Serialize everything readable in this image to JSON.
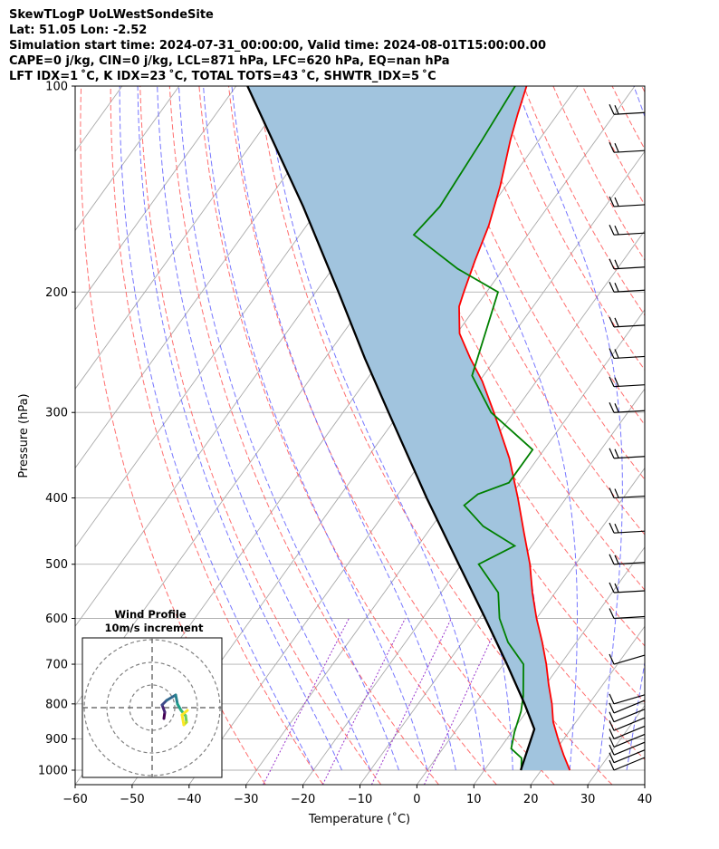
{
  "header": {
    "line1": "SkewTLogP UoLWestSondeSite",
    "line2": "Lat: 51.05   Lon: -2.52",
    "line3": "Simulation start time: 2024-07-31_00:00:00, Valid time: 2024-08-01T15:00:00.00",
    "line4": "CAPE=0 j/kg, CIN=0 j/kg, LCL=871 hPa, LFC=620 hPa, EQ=nan hPa",
    "line5": "LFT IDX=1 ˚C, K IDX=23 ˚C, TOTAL TOTS=43 ˚C, SHWTR_IDX=5 ˚C"
  },
  "chart_data": {
    "type": "line",
    "subtype": "skew-T log-P",
    "xlabel": "Temperature (˚C)",
    "ylabel": "Pressure (hPa)",
    "xlim": [
      -60,
      40
    ],
    "ylim": [
      1050,
      100
    ],
    "y_scale": "log",
    "grid": true,
    "x_ticks": [
      "−60",
      "−50",
      "−40",
      "−30",
      "−20",
      "−10",
      "0",
      "10",
      "20",
      "30",
      "40"
    ],
    "y_ticks": [
      "100",
      "200",
      "300",
      "400",
      "500",
      "600",
      "700",
      "800",
      "900",
      "1000"
    ],
    "series": [
      {
        "role": "temperature",
        "color": "#ff0000",
        "points": [
          [
            1000,
            25
          ],
          [
            950,
            22
          ],
          [
            900,
            19
          ],
          [
            850,
            16
          ],
          [
            800,
            13.5
          ],
          [
            750,
            10.5
          ],
          [
            700,
            7.5
          ],
          [
            650,
            4
          ],
          [
            600,
            0
          ],
          [
            550,
            -4
          ],
          [
            500,
            -8
          ],
          [
            450,
            -13
          ],
          [
            400,
            -18.5
          ],
          [
            350,
            -25
          ],
          [
            300,
            -33.5
          ],
          [
            270,
            -39.5
          ],
          [
            250,
            -44.5
          ],
          [
            230,
            -49.5
          ],
          [
            210,
            -53
          ],
          [
            200,
            -54
          ],
          [
            180,
            -56
          ],
          [
            160,
            -58
          ],
          [
            140,
            -61
          ],
          [
            120,
            -65
          ],
          [
            110,
            -67
          ],
          [
            100,
            -69
          ]
        ]
      },
      {
        "role": "dewpoint",
        "color": "#008000",
        "points": [
          [
            1000,
            16.5
          ],
          [
            960,
            15
          ],
          [
            930,
            12
          ],
          [
            880,
            10.5
          ],
          [
            820,
            9
          ],
          [
            780,
            7.5
          ],
          [
            700,
            3.5
          ],
          [
            650,
            -2
          ],
          [
            600,
            -6.5
          ],
          [
            550,
            -10
          ],
          [
            500,
            -17
          ],
          [
            470,
            -13
          ],
          [
            440,
            -21
          ],
          [
            410,
            -27
          ],
          [
            395,
            -26
          ],
          [
            380,
            -22
          ],
          [
            340,
            -22
          ],
          [
            300,
            -34
          ],
          [
            265,
            -42
          ],
          [
            230,
            -45
          ],
          [
            200,
            -48
          ],
          [
            185,
            -58
          ],
          [
            165,
            -70
          ],
          [
            150,
            -69
          ],
          [
            120,
            -70
          ],
          [
            100,
            -71
          ]
        ]
      },
      {
        "role": "parcel",
        "color": "#000000",
        "points": [
          [
            1000,
            16.4
          ],
          [
            871,
            13.6
          ],
          [
            800,
            8.7
          ],
          [
            700,
            0.6
          ],
          [
            600,
            -9
          ],
          [
            500,
            -20.5
          ],
          [
            400,
            -34.5
          ],
          [
            300,
            -52
          ],
          [
            250,
            -63
          ],
          [
            200,
            -76
          ],
          [
            150,
            -93
          ],
          [
            100,
            -118
          ]
        ]
      }
    ],
    "shading": {
      "positive_area_color": "#a1c4de"
    },
    "reference_lines": {
      "dry_adiabat_color": "#ff5555",
      "moist_adiabat_color": "#5555ff",
      "mixing_ratio_color": "#9933cc",
      "isotherm_color": "#aaaaaa"
    },
    "wind_barbs": {
      "levels": [
        1000,
        975,
        950,
        925,
        900,
        875,
        850,
        825,
        800,
        700,
        600,
        550,
        500,
        450,
        400,
        350,
        300,
        275,
        250,
        225,
        200,
        185,
        165,
        150,
        125,
        110
      ],
      "color": "#000000"
    },
    "inset": {
      "title": "Wind Profile",
      "subtitle": "10m/s increment",
      "type": "hodograph"
    }
  }
}
